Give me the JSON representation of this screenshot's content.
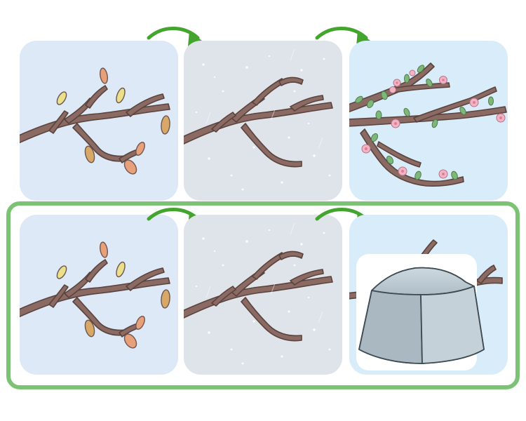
{
  "illustration": {
    "rows": [
      {
        "panels": [
          {
            "scene": "autumn",
            "elements": [
              "branch",
              "leaves"
            ]
          },
          {
            "scene": "winter",
            "elements": [
              "branch",
              "snow"
            ]
          },
          {
            "scene": "spring",
            "elements": [
              "branch",
              "blossoms",
              "buds"
            ]
          }
        ],
        "arrows": [
          "right-arrow",
          "right-arrow"
        ],
        "highlighted": false
      },
      {
        "panels": [
          {
            "scene": "autumn",
            "elements": [
              "branch",
              "leaves"
            ]
          },
          {
            "scene": "winter",
            "elements": [
              "branch",
              "snow"
            ]
          },
          {
            "scene": "covered",
            "elements": [
              "branch",
              "block"
            ]
          }
        ],
        "arrows": [
          "right-arrow",
          "right-arrow"
        ],
        "highlighted": true
      }
    ],
    "colors": {
      "panel_autumn": "#dde9f6",
      "panel_winter": "#dfe3ea",
      "panel_spring": "#d9ecfa",
      "branch": "#8a6a62",
      "branch_outline": "#5a433d",
      "leaf_peach": "#e8a07a",
      "leaf_yellow": "#eae08a",
      "leaf_tan": "#d8a868",
      "bud_green": "#7fb77a",
      "blossom": "#f2b4c4",
      "arrow_green": "#44a52e",
      "highlight_border": "#7cc275",
      "block_fill": "#b9c7cf"
    }
  }
}
